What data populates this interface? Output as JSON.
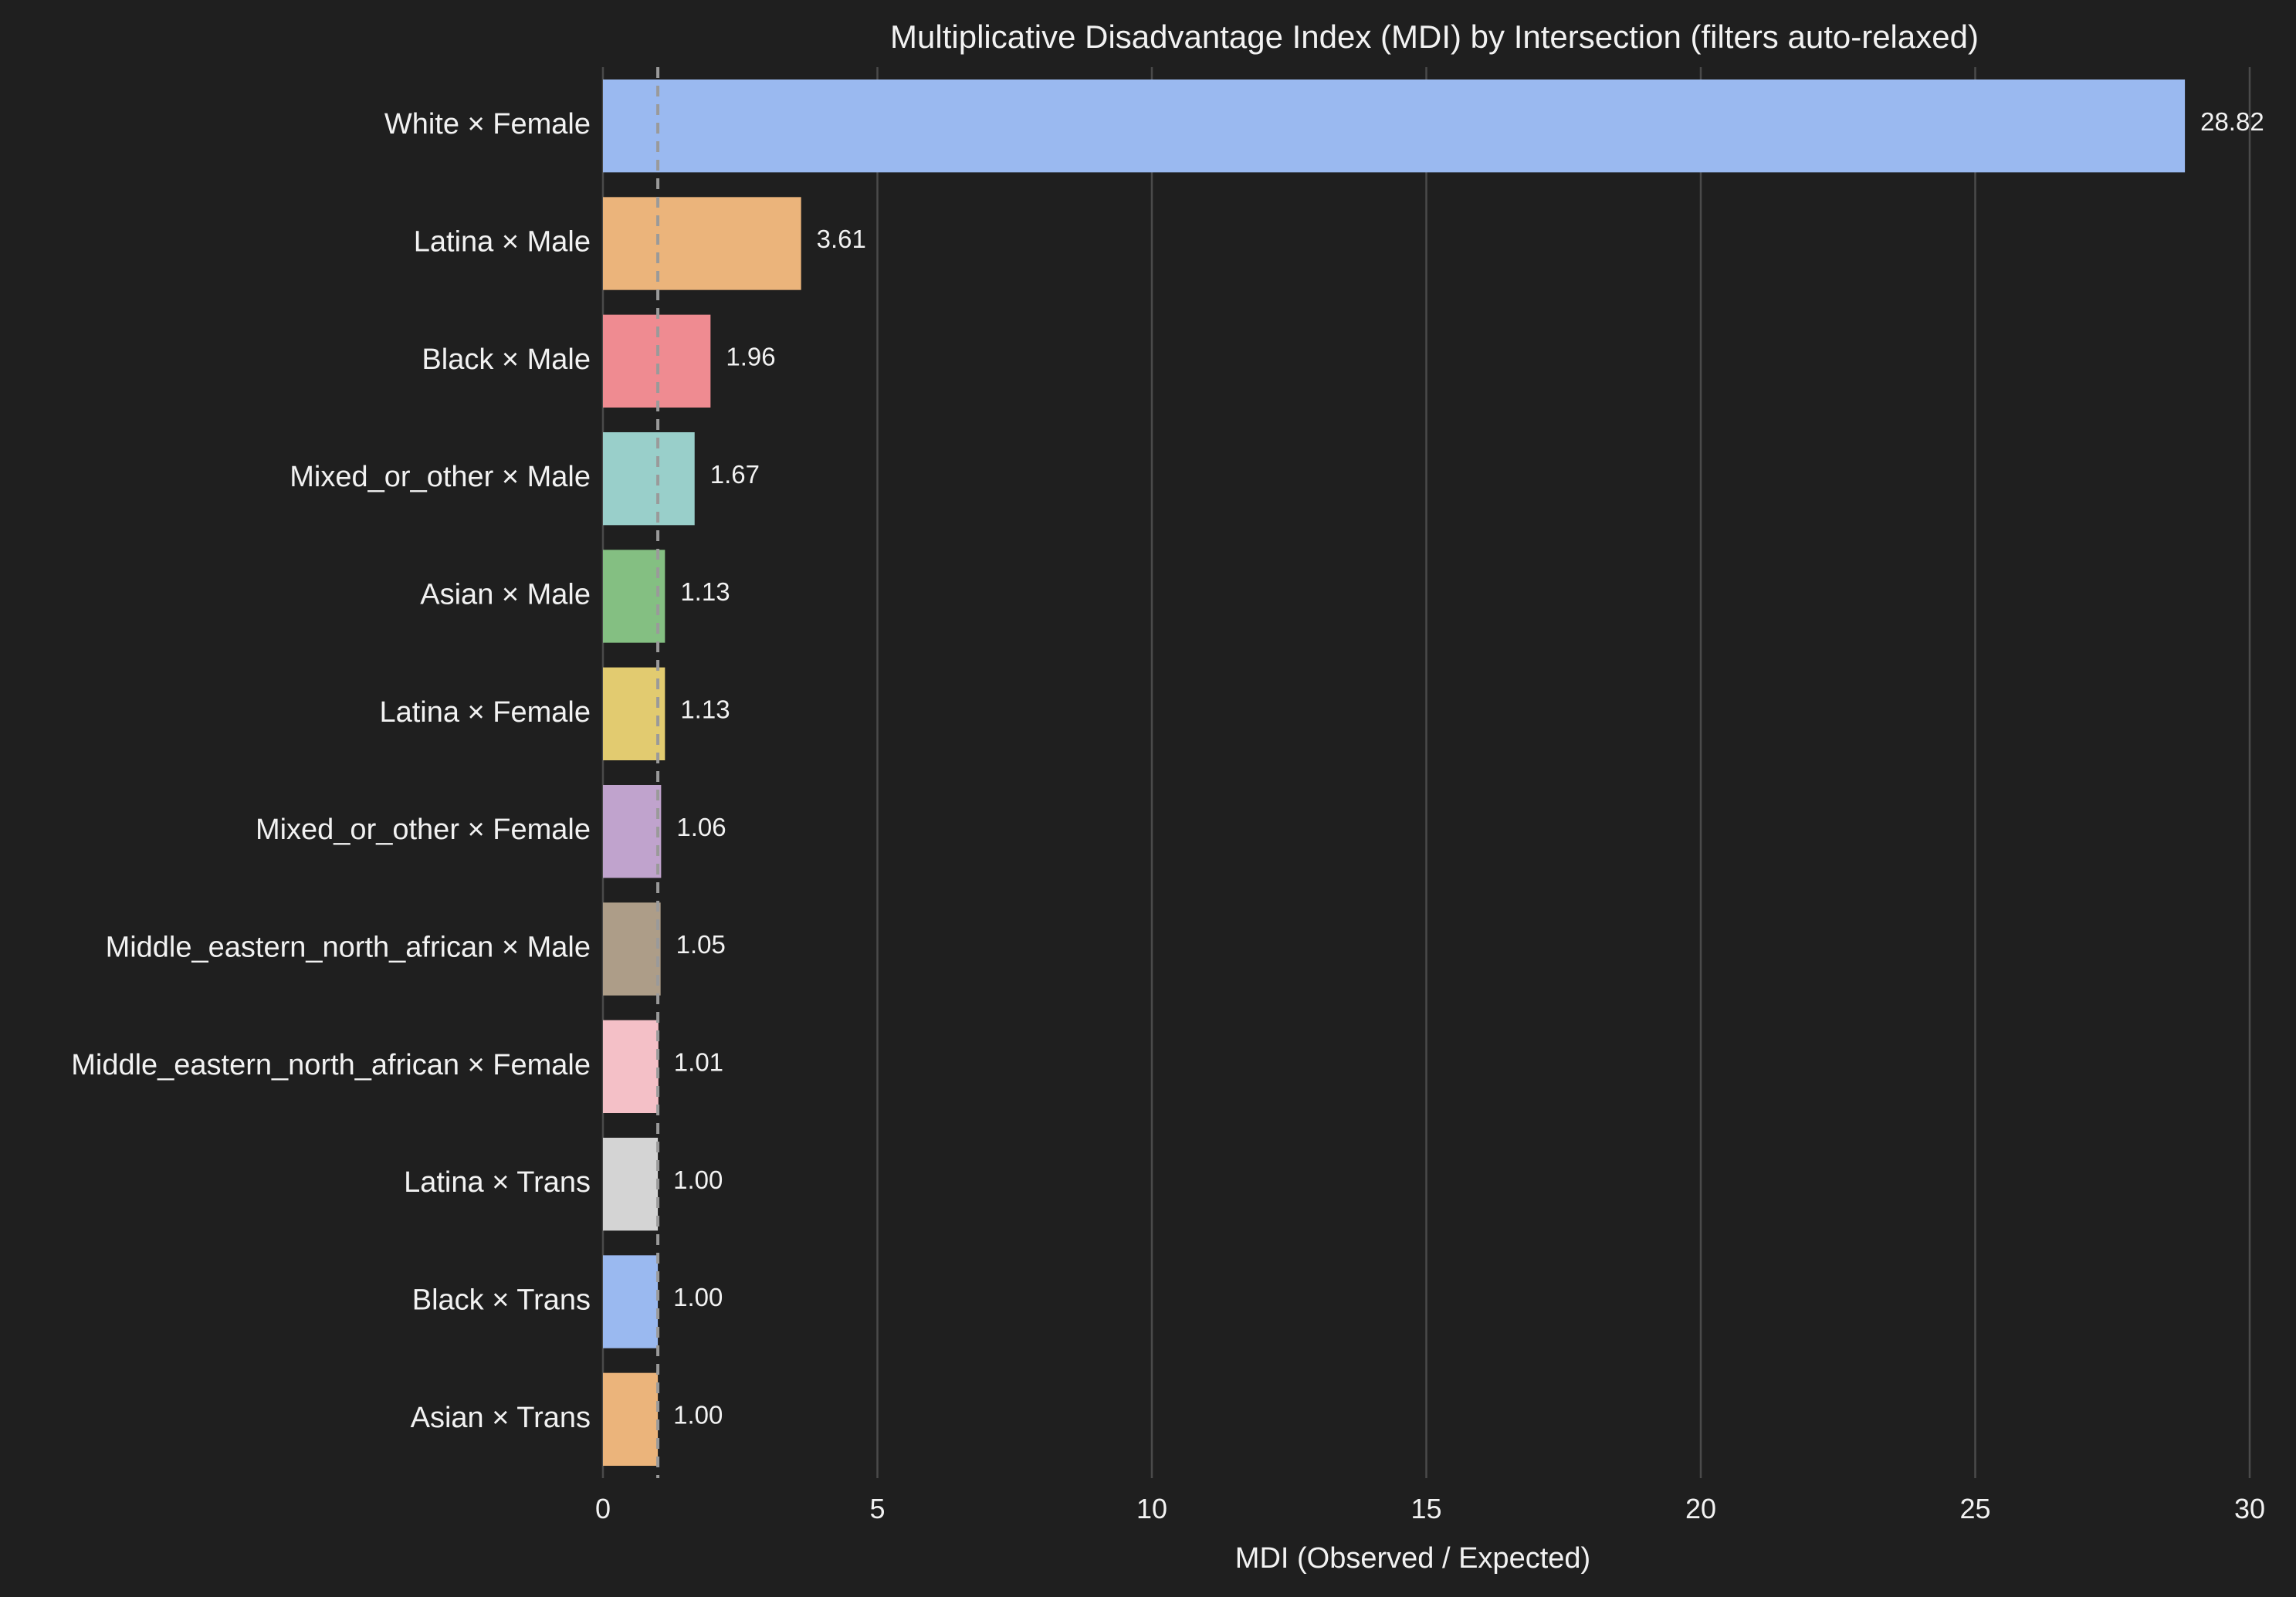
{
  "chart_data": {
    "type": "bar",
    "orientation": "horizontal",
    "title": "Multiplicative Disadvantage Index (MDI) by Intersection  (filters auto-relaxed)",
    "xlabel": "MDI (Observed / Expected)",
    "ylabel": "",
    "xlim": [
      0,
      30
    ],
    "xticks": [
      0,
      5,
      10,
      15,
      20,
      25,
      30
    ],
    "grid": "vertical",
    "reference_line": {
      "value": 1.0,
      "style": "dashed",
      "color": "#9a9a9a"
    },
    "categories": [
      "White × Female",
      "Latina × Male",
      "Black × Male",
      "Mixed_or_other × Male",
      "Asian × Male",
      "Latina × Female",
      "Mixed_or_other × Female",
      "Middle_eastern_north_african × Male",
      "Middle_eastern_north_african × Female",
      "Latina × Trans",
      "Black × Trans",
      "Asian × Trans"
    ],
    "values": [
      28.82,
      3.61,
      1.96,
      1.67,
      1.13,
      1.13,
      1.06,
      1.05,
      1.01,
      1.0,
      1.0,
      1.0
    ],
    "value_labels": [
      "28.82",
      "3.61",
      "1.96",
      "1.67",
      "1.13",
      "1.13",
      "1.06",
      "1.05",
      "1.01",
      "1.00",
      "1.00",
      "1.00"
    ],
    "colors": [
      "#9ab9f0",
      "#ebb47b",
      "#ef8b91",
      "#99cfca",
      "#84bf82",
      "#e2cb70",
      "#c0a3cd",
      "#ad9d88",
      "#f4c0c7",
      "#d4d4d4",
      "#9ab9f0",
      "#ebb47b"
    ]
  }
}
